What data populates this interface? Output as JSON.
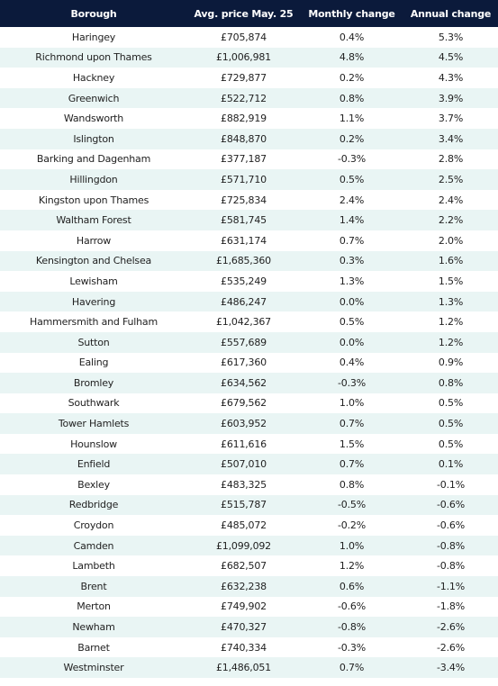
{
  "table": {
    "headers": [
      "Borough",
      "Avg. price May. 25",
      "Monthly change",
      "Annual change"
    ],
    "rows": [
      [
        "Haringey",
        "£705,874",
        "0.4%",
        "5.3%"
      ],
      [
        "Richmond upon Thames",
        "£1,006,981",
        "4.8%",
        "4.5%"
      ],
      [
        "Hackney",
        "£729,877",
        "0.2%",
        "4.3%"
      ],
      [
        "Greenwich",
        "£522,712",
        "0.8%",
        "3.9%"
      ],
      [
        "Wandsworth",
        "£882,919",
        "1.1%",
        "3.7%"
      ],
      [
        "Islington",
        "£848,870",
        "0.2%",
        "3.4%"
      ],
      [
        "Barking and Dagenham",
        "£377,187",
        "-0.3%",
        "2.8%"
      ],
      [
        "Hillingdon",
        "£571,710",
        "0.5%",
        "2.5%"
      ],
      [
        "Kingston upon Thames",
        "£725,834",
        "2.4%",
        "2.4%"
      ],
      [
        "Waltham Forest",
        "£581,745",
        "1.4%",
        "2.2%"
      ],
      [
        "Harrow",
        "£631,174",
        "0.7%",
        "2.0%"
      ],
      [
        "Kensington and Chelsea",
        "£1,685,360",
        "0.3%",
        "1.6%"
      ],
      [
        "Lewisham",
        "£535,249",
        "1.3%",
        "1.5%"
      ],
      [
        "Havering",
        "£486,247",
        "0.0%",
        "1.3%"
      ],
      [
        "Hammersmith and Fulham",
        "£1,042,367",
        "0.5%",
        "1.2%"
      ],
      [
        "Sutton",
        "£557,689",
        "0.0%",
        "1.2%"
      ],
      [
        "Ealing",
        "£617,360",
        "0.4%",
        "0.9%"
      ],
      [
        "Bromley",
        "£634,562",
        "-0.3%",
        "0.8%"
      ],
      [
        "Southwark",
        "£679,562",
        "1.0%",
        "0.5%"
      ],
      [
        "Tower Hamlets",
        "£603,952",
        "0.7%",
        "0.5%"
      ],
      [
        "Hounslow",
        "£611,616",
        "1.5%",
        "0.5%"
      ],
      [
        "Enfield",
        "£507,010",
        "0.7%",
        "0.1%"
      ],
      [
        "Bexley",
        "£483,325",
        "0.8%",
        "-0.1%"
      ],
      [
        "Redbridge",
        "£515,787",
        "-0.5%",
        "-0.6%"
      ],
      [
        "Croydon",
        "£485,072",
        "-0.2%",
        "-0.6%"
      ],
      [
        "Camden",
        "£1,099,092",
        "1.0%",
        "-0.8%"
      ],
      [
        "Lambeth",
        "£682,507",
        "1.2%",
        "-0.8%"
      ],
      [
        "Brent",
        "£632,238",
        "0.6%",
        "-1.1%"
      ],
      [
        "Merton",
        "£749,902",
        "-0.6%",
        "-1.8%"
      ],
      [
        "Newham",
        "£470,327",
        "-0.8%",
        "-2.6%"
      ],
      [
        "Barnet",
        "£740,334",
        "-0.3%",
        "-2.6%"
      ],
      [
        "Westminster",
        "£1,486,051",
        "0.7%",
        "-3.4%"
      ]
    ]
  },
  "colors": {
    "header_background": "#0b1a3b",
    "header_text": "#ffffff",
    "stripe": "#e9f5f4",
    "cell_text": "#222222"
  }
}
